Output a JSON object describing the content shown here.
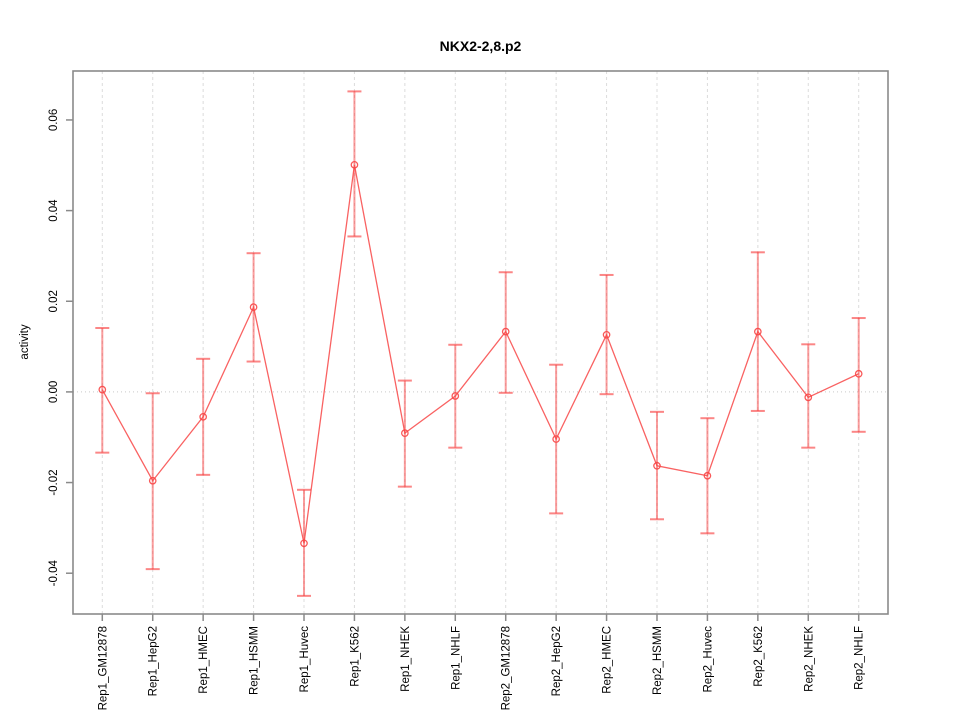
{
  "chart_data": {
    "type": "line",
    "title": "NKX2-2,8.p2",
    "xlabel": "",
    "ylabel": "activity",
    "categories": [
      "Rep1_GM12878",
      "Rep1_HepG2",
      "Rep1_HMEC",
      "Rep1_HSMM",
      "Rep1_Huvec",
      "Rep1_K562",
      "Rep1_NHEK",
      "Rep1_NHLF",
      "Rep2_GM12878",
      "Rep2_HepG2",
      "Rep2_HMEC",
      "Rep2_HSMM",
      "Rep2_Huvec",
      "Rep2_K562",
      "Rep2_NHEK",
      "Rep2_NHLF"
    ],
    "values": [
      0.0005,
      -0.0196,
      -0.0055,
      0.0187,
      -0.0334,
      0.0501,
      -0.0091,
      -0.0009,
      0.0133,
      -0.0104,
      0.0126,
      -0.0163,
      -0.0185,
      0.0133,
      -0.0012,
      0.004
    ],
    "error_high": [
      0.0141,
      -0.0003,
      0.0073,
      0.0306,
      -0.0216,
      0.0663,
      0.0025,
      0.0104,
      0.0264,
      0.006,
      0.0258,
      -0.0044,
      -0.0058,
      0.0308,
      0.0105,
      0.0163
    ],
    "error_low": [
      -0.0134,
      -0.0391,
      -0.0183,
      0.0067,
      -0.045,
      0.0343,
      -0.0209,
      -0.0123,
      -0.0002,
      -0.0268,
      -0.0005,
      -0.0281,
      -0.0312,
      -0.0042,
      -0.0123,
      -0.0088
    ],
    "yticks": [
      -0.04,
      -0.02,
      0,
      0.02,
      0.04,
      0.06
    ],
    "ytick_labels": [
      "-0.04",
      "-0.02",
      "0.00",
      "0.02",
      "0.04",
      "0.06"
    ],
    "ylim": [
      -0.049,
      0.0708
    ],
    "grid": "vertical-dashed-per-category, dotted-zero-line",
    "legend": "none",
    "colors": {
      "series": "#f84646",
      "error_bar": "#f83c3c",
      "grid_line": "#dcdcdc",
      "zero_line": "#c9c9c9",
      "frame": "#8a8a8a",
      "text": "#000000"
    }
  }
}
